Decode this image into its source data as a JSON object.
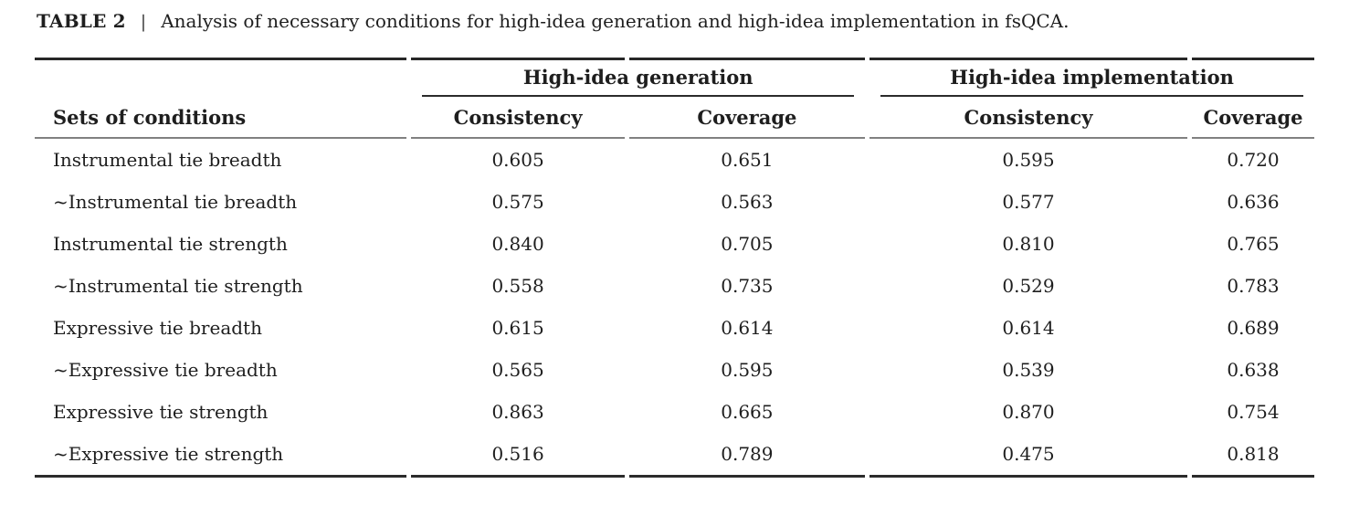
{
  "title": {
    "label": "TABLE 2",
    "separator": "|",
    "caption": "Analysis of necessary conditions for high-idea generation and high-idea implementation in fsQCA."
  },
  "table": {
    "row_header": "Sets of conditions",
    "groups": [
      {
        "label": "High-idea generation",
        "columns": [
          "Consistency",
          "Coverage"
        ]
      },
      {
        "label": "High-idea implementation",
        "columns": [
          "Consistency",
          "Coverage"
        ]
      }
    ],
    "rows": [
      {
        "condition": "Instrumental tie breadth",
        "values": [
          "0.605",
          "0.651",
          "0.595",
          "0.720"
        ]
      },
      {
        "condition": "~Instrumental tie breadth",
        "values": [
          "0.575",
          "0.563",
          "0.577",
          "0.636"
        ]
      },
      {
        "condition": "Instrumental tie strength",
        "values": [
          "0.840",
          "0.705",
          "0.810",
          "0.765"
        ]
      },
      {
        "condition": "~Instrumental tie strength",
        "values": [
          "0.558",
          "0.735",
          "0.529",
          "0.783"
        ]
      },
      {
        "condition": "Expressive tie breadth",
        "values": [
          "0.615",
          "0.614",
          "0.614",
          "0.689"
        ]
      },
      {
        "condition": "~Expressive tie breadth",
        "values": [
          "0.565",
          "0.595",
          "0.539",
          "0.638"
        ]
      },
      {
        "condition": "Expressive tie strength",
        "values": [
          "0.863",
          "0.665",
          "0.870",
          "0.754"
        ]
      },
      {
        "condition": "~Expressive tie strength",
        "values": [
          "0.516",
          "0.789",
          "0.475",
          "0.818"
        ]
      }
    ]
  },
  "colors": {
    "text": "#1e1e1e",
    "rule_heavy": "#272727",
    "rule_light": "#818181",
    "background": "#ffffff"
  }
}
